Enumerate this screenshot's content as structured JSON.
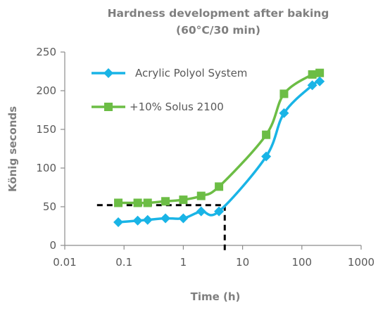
{
  "chart_data": {
    "type": "line",
    "title": "Hardness development after baking",
    "subtitle": "(60°C/30 min)",
    "xlabel": "Time (h)",
    "ylabel": "König seconds",
    "xscale": "log",
    "xlim": [
      0.01,
      1000
    ],
    "ylim": [
      0,
      250
    ],
    "x_ticks": [
      0.01,
      0.1,
      1,
      10,
      100,
      1000
    ],
    "x_tick_labels": [
      "0.01",
      "0.1",
      "1",
      "10",
      "100",
      "1000"
    ],
    "y_ticks": [
      0,
      50,
      100,
      150,
      200,
      250
    ],
    "y_tick_labels": [
      "0",
      "50",
      "100",
      "150",
      "200",
      "250"
    ],
    "grid": false,
    "legend_position": "top-left",
    "series": [
      {
        "name": "Acrylic Polyol System",
        "color": "#19b4e6",
        "marker": "diamond",
        "x": [
          0.08,
          0.17,
          0.25,
          0.5,
          1,
          2,
          4,
          25,
          50,
          150,
          200
        ],
        "y": [
          30,
          32,
          33,
          35,
          35,
          44,
          44,
          115,
          171,
          207,
          212
        ]
      },
      {
        "name": "+10% Solus 2100",
        "color": "#6cbd45",
        "marker": "square",
        "x": [
          0.08,
          0.17,
          0.25,
          0.5,
          1,
          2,
          4,
          25,
          50,
          150,
          200
        ],
        "y": [
          55,
          55,
          55,
          57,
          59,
          64,
          76,
          143,
          196,
          221,
          223
        ]
      }
    ],
    "annotations": [
      {
        "type": "dashed-guide",
        "color": "#000000",
        "x_from": 0.035,
        "x_to": 5,
        "y": 52,
        "y_from": 52,
        "y_to": 0
      }
    ]
  }
}
